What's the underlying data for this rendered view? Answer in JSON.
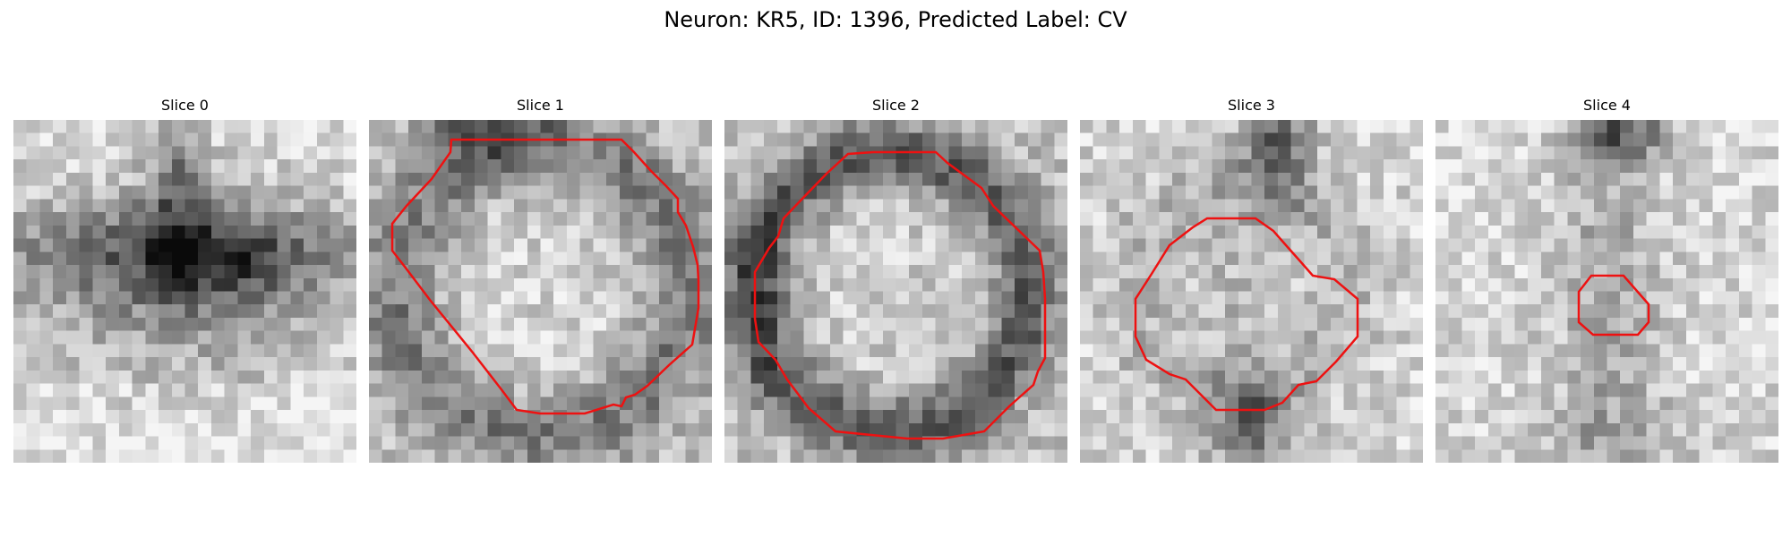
{
  "figure": {
    "title": "Neuron: KR5, ID: 1396, Predicted Label: CV"
  },
  "colors": {
    "contour": "#ee1111",
    "colormap": "grayscale (dark = high)"
  },
  "slices": [
    {
      "title": "Slice 0"
    },
    {
      "title": "Slice 1"
    },
    {
      "title": "Slice 2"
    },
    {
      "title": "Slice 3"
    },
    {
      "title": "Slice 4"
    }
  ]
}
